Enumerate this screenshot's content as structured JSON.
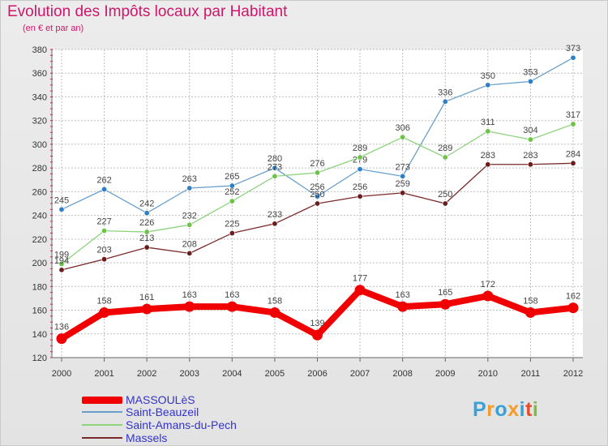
{
  "title": "Evolution des Impôts locaux par Habitant",
  "subtitle": "(en € et par an)",
  "logo": {
    "text": "Proxiti",
    "colors": [
      "#3aa0d8",
      "#f39c2b",
      "#3aa0d8",
      "#f39c2b",
      "#3aa0d8",
      "#e84a2c",
      "#7fbd3a"
    ]
  },
  "chart_data": {
    "type": "line",
    "title": "Evolution des Impôts locaux par Habitant",
    "subtitle": "(en € et par an)",
    "x": [
      "2000",
      "2001",
      "2002",
      "2003",
      "2004",
      "2005",
      "2006",
      "2007",
      "2008",
      "2009",
      "2010",
      "2011",
      "2012"
    ],
    "ylim": [
      120,
      380
    ],
    "yticks": [
      120,
      140,
      160,
      180,
      200,
      220,
      240,
      260,
      280,
      300,
      320,
      340,
      360,
      380
    ],
    "grid": true,
    "legend": "bottom-left",
    "series": [
      {
        "name": "Saint-Beauzeil",
        "color": "#6a9fcb",
        "marker": "#2f7fc4",
        "values": [
          245,
          262,
          242,
          263,
          265,
          280,
          256,
          279,
          273,
          336,
          350,
          353,
          373
        ],
        "labels": [
          "245",
          "262",
          "242",
          "263",
          "265",
          "280",
          "256",
          "279",
          "273",
          "336",
          "350",
          "353",
          "373"
        ]
      },
      {
        "name": "Saint-Amans-du-Pech",
        "color": "#8ed37e",
        "marker": "#6cc348",
        "values": [
          199,
          227,
          226,
          232,
          252,
          273,
          276,
          289,
          306,
          289,
          311,
          304,
          317
        ],
        "labels": [
          "199",
          "227",
          "226",
          "232",
          "252",
          "273",
          "276",
          "289",
          "306",
          "289",
          "311",
          "304",
          "317"
        ]
      },
      {
        "name": "Massels",
        "color": "#7a2a2a",
        "marker": "#6b1c1c",
        "values": [
          194,
          203,
          213,
          208,
          225,
          233,
          250,
          256,
          259,
          250,
          283,
          283,
          284
        ],
        "labels": [
          "194",
          "203",
          "213",
          "208",
          "225",
          "233",
          "250",
          "256",
          "259",
          "250",
          "283",
          "283",
          "284"
        ]
      },
      {
        "name": "MASSOULèS",
        "color": "#f00000",
        "marker": "#f00000",
        "values": [
          136,
          158,
          161,
          163,
          163,
          158,
          139,
          177,
          163,
          165,
          172,
          158,
          162
        ],
        "labels": [
          "136",
          "158",
          "161",
          "163",
          "163",
          "158",
          "139",
          "177",
          "163",
          "165",
          "172",
          "158",
          "162"
        ]
      }
    ]
  }
}
